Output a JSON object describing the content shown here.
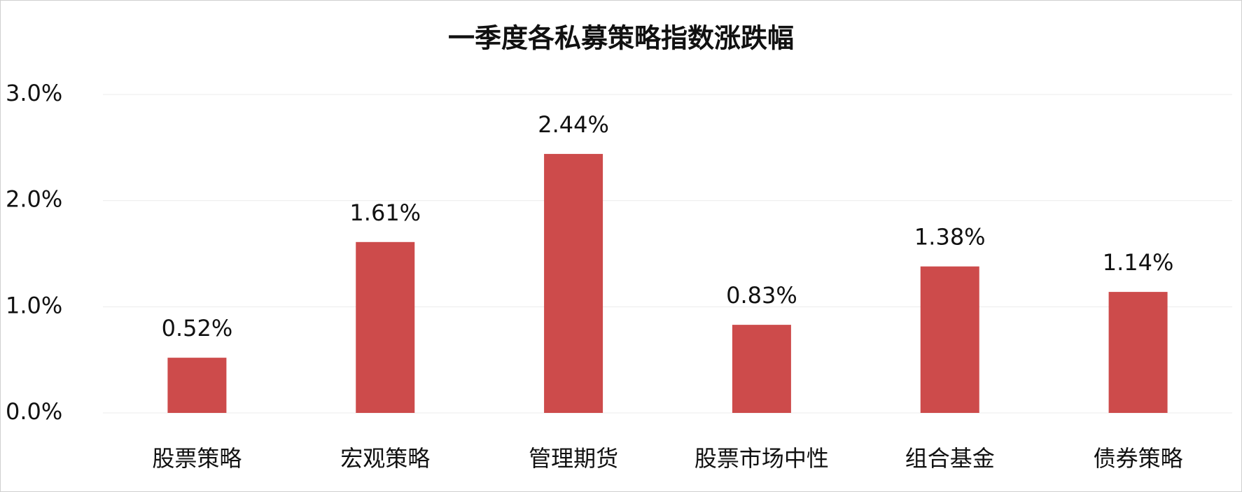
{
  "chart_data": {
    "type": "bar",
    "title": "一季度各私募策略指数涨跌幅",
    "categories": [
      "股票策略",
      "宏观策略",
      "管理期货",
      "股票市场中性",
      "组合基金",
      "债券策略"
    ],
    "values": [
      0.52,
      1.61,
      2.44,
      0.83,
      1.38,
      1.14
    ],
    "value_labels": [
      "0.52%",
      "1.61%",
      "2.44%",
      "0.83%",
      "1.38%",
      "1.14%"
    ],
    "color": "#cd4b4b",
    "ylim": [
      0,
      3
    ],
    "yticks": [
      {
        "value": 0,
        "label": "0.0%"
      },
      {
        "value": 1,
        "label": "1.0%"
      },
      {
        "value": 2,
        "label": "2.0%"
      },
      {
        "value": 3,
        "label": "3.0%"
      }
    ],
    "grid": true
  }
}
